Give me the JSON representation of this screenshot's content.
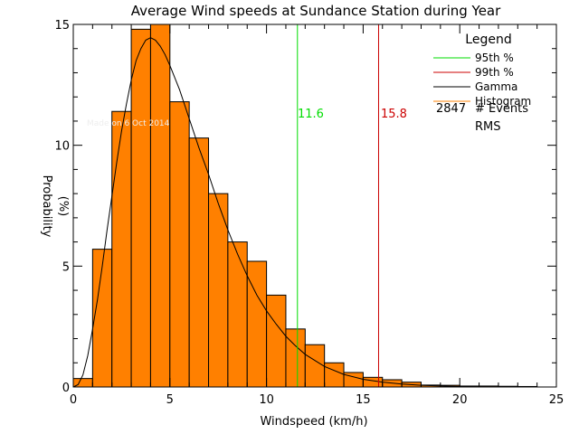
{
  "chart_data": {
    "type": "bar",
    "title": "Average Wind speeds at Sundance Station during Year",
    "xlabel": "Windspeed (km/h)",
    "ylabel_word": "Probability",
    "ylabel_unit": "(%)",
    "xlim": [
      0,
      25
    ],
    "ylim": [
      0,
      15
    ],
    "xticks": [
      0,
      5,
      10,
      15,
      20,
      25
    ],
    "yticks": [
      0,
      5,
      10,
      15
    ],
    "grid": false,
    "legend_position": "top-right",
    "histogram": {
      "name": "Histogram",
      "color": "#ff8000",
      "bin_width": 1,
      "bin_starts": [
        0,
        1,
        2,
        3,
        4,
        5,
        6,
        7,
        8,
        9,
        10,
        11,
        12,
        13,
        14,
        15,
        16,
        17,
        18,
        19,
        20,
        21,
        22,
        23
      ],
      "values": [
        0.35,
        5.7,
        11.4,
        14.8,
        15.0,
        11.8,
        10.3,
        8.0,
        6.0,
        5.2,
        3.8,
        2.4,
        1.75,
        1.0,
        0.6,
        0.4,
        0.3,
        0.2,
        0.08,
        0.07,
        0.04,
        0.04,
        0.03,
        0.02
      ]
    },
    "gamma": {
      "name": "Gamma",
      "color": "#000000",
      "x": [
        0,
        0.25,
        0.5,
        0.75,
        1,
        1.25,
        1.5,
        1.75,
        2,
        2.25,
        2.5,
        2.75,
        3,
        3.25,
        3.5,
        3.75,
        4,
        4.25,
        4.5,
        4.75,
        5,
        5.5,
        6,
        6.5,
        7,
        7.5,
        8,
        8.5,
        9,
        9.5,
        10,
        10.5,
        11,
        11.5,
        12,
        13,
        14,
        15,
        16,
        17,
        18,
        19,
        20,
        21,
        22,
        23,
        24
      ],
      "y": [
        0,
        0.1,
        0.5,
        1.3,
        2.4,
        3.6,
        5.0,
        6.5,
        7.9,
        9.3,
        10.6,
        11.7,
        12.7,
        13.5,
        14.0,
        14.35,
        14.45,
        14.35,
        14.1,
        13.75,
        13.3,
        12.3,
        11.1,
        9.9,
        8.8,
        7.6,
        6.5,
        5.5,
        4.6,
        3.8,
        3.15,
        2.6,
        2.1,
        1.7,
        1.35,
        0.85,
        0.52,
        0.32,
        0.2,
        0.12,
        0.07,
        0.04,
        0.025,
        0.015,
        0.01,
        0.006,
        0.004
      ]
    },
    "percentiles": [
      {
        "name": "95th %",
        "value": 11.6,
        "label": "11.6",
        "color": "#00dd00"
      },
      {
        "name": "99th %",
        "value": 15.8,
        "label": "15.8",
        "color": "#cc0000"
      }
    ],
    "legend": {
      "title": "Legend",
      "entries": [
        {
          "label": "95th %",
          "color": "#00dd00"
        },
        {
          "label": "99th %",
          "color": "#cc0000"
        },
        {
          "label": "Gamma",
          "color": "#000000"
        },
        {
          "label": "Histogram",
          "color": "#ff8000"
        }
      ],
      "events_count": "2847",
      "events_label": "# Events",
      "rms_label": "RMS"
    },
    "annotation": "Made on 6 Oct 2014"
  }
}
